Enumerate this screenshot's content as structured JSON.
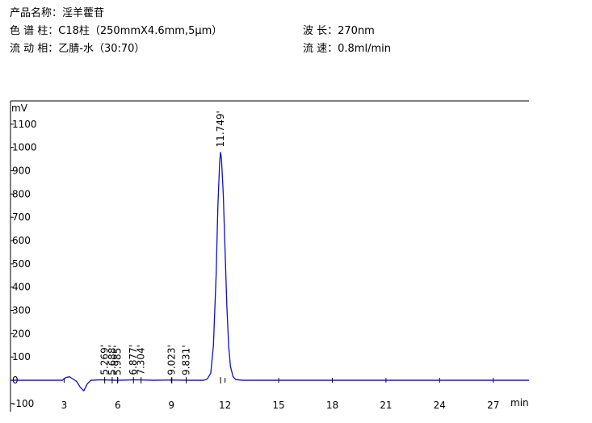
{
  "header": {
    "product": "产品名称：淫羊藿苷",
    "column": "色 谱 柱：C18柱（250mmX4.6mm,5μm）",
    "wavelength": "波  长：270nm",
    "mobile_phase": "流 动 相：乙腈-水（30:70）",
    "flow_rate": "流  速：0.8ml/min"
  },
  "chart_data": {
    "type": "line",
    "y_label": "mV",
    "x_label": "min",
    "xlim": [
      0,
      29
    ],
    "ylim": [
      -135,
      1200
    ],
    "xticks": [
      3,
      6,
      9,
      12,
      15,
      18,
      21,
      24,
      27
    ],
    "yticks": [
      -100,
      0,
      100,
      200,
      300,
      400,
      500,
      600,
      700,
      800,
      900,
      1000,
      1100
    ],
    "series": [
      {
        "name": "signal",
        "color": "#1010c0",
        "x": [
          0,
          2.9,
          3.1,
          3.3,
          3.5,
          3.7,
          3.9,
          4.1,
          4.3,
          4.5,
          5,
          6,
          7,
          8,
          9,
          10,
          10.8,
          11.0,
          11.2,
          11.35,
          11.5,
          11.6,
          11.7,
          11.749,
          11.8,
          11.9,
          12.0,
          12.1,
          12.2,
          12.3,
          12.45,
          12.6,
          13,
          29
        ],
        "values": [
          0,
          0,
          12,
          15,
          5,
          -5,
          -30,
          -45,
          -15,
          0,
          2,
          0,
          2,
          0,
          1,
          0,
          0,
          5,
          30,
          150,
          450,
          750,
          940,
          980,
          950,
          800,
          560,
          320,
          150,
          60,
          15,
          3,
          0,
          0
        ]
      }
    ],
    "peaks": [
      {
        "value": 5.269,
        "label": "5.269'"
      },
      {
        "value": 5.688,
        "label": "5.688'"
      },
      {
        "value": 5.985,
        "label": "5.985'"
      },
      {
        "value": 6.877,
        "label": "6.877'"
      },
      {
        "value": 7.304,
        "label": "7.304'"
      },
      {
        "value": 9.023,
        "label": "9.023'"
      },
      {
        "value": 9.831,
        "label": "9.831'"
      },
      {
        "value": 11.749,
        "label": "11.749'"
      }
    ]
  }
}
